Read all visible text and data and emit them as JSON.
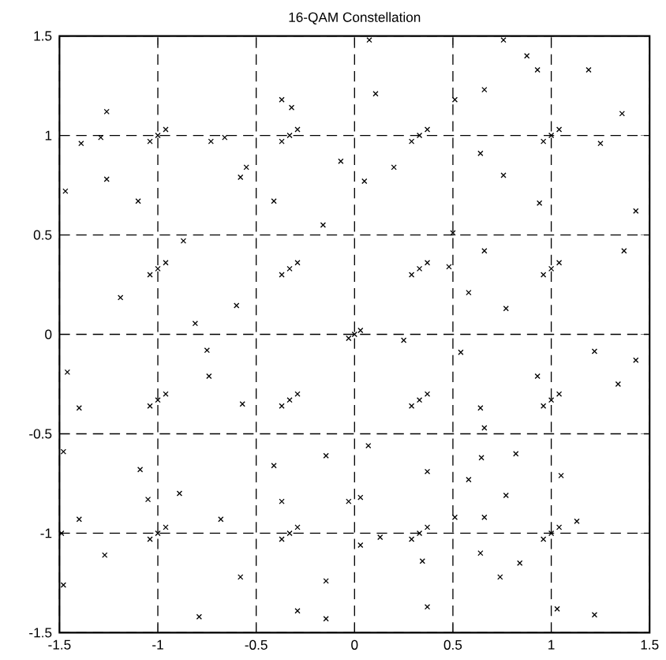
{
  "chart_data": {
    "type": "scatter",
    "title": "16-QAM Constellation",
    "x": [
      -1,
      -0.96,
      -1.04,
      -0.33,
      -0.29,
      -0.37,
      0.33,
      0.37,
      0.29,
      1,
      1.04,
      0.96,
      -1,
      -0.96,
      -1.04,
      -0.33,
      -0.29,
      -0.37,
      0.33,
      0.37,
      0.29,
      1,
      1.04,
      0.96,
      -1,
      -0.96,
      -1.04,
      -0.33,
      -0.29,
      -0.37,
      0.33,
      0.37,
      0.29,
      1,
      1.04,
      0.96,
      -1,
      -0.96,
      -1.04,
      -0.33,
      -0.29,
      -0.37,
      0.33,
      0.37,
      0.29,
      1,
      1.04,
      0.96,
      0,
      0.03,
      -0.03,
      -1.47,
      -1.26,
      -1.39,
      -1.29,
      -1.26,
      -1.1,
      -0.73,
      -0.66,
      -0.58,
      -0.55,
      -0.81,
      -0.6,
      -0.16,
      -0.41,
      -0.37,
      -0.32,
      -1.19,
      -0.87,
      0.075,
      0.757,
      0.876,
      0.93,
      1.19,
      0.107,
      0.66,
      0.51,
      1.36,
      -0.07,
      0.05,
      0.2,
      0.64,
      0.757,
      1.25,
      0.94,
      1.43,
      1.37,
      0.66,
      0.77,
      0.58,
      0.48,
      0.5,
      -1.46,
      -1.4,
      -1.48,
      -1.09,
      -0.89,
      -1.05,
      -1.4,
      -1.49,
      -1.27,
      -1.48,
      -0.79,
      -0.75,
      -0.74,
      -0.58,
      -0.29,
      -0.145,
      -0.145,
      -0.145,
      -0.68,
      -0.37,
      -0.41,
      -0.57,
      0.25,
      0.54,
      1.22,
      1.43,
      1.34,
      0.93,
      0.64,
      0.66,
      0.07,
      0.645,
      0.37,
      0.58,
      0.77,
      0.82,
      1.05,
      -0.03,
      0.03,
      0.51,
      0.66,
      0.64,
      0.74,
      0.84,
      0.345,
      0.37,
      1.22,
      1.03,
      0.13,
      0.03,
      1.13
    ],
    "values": [
      1,
      1.03,
      0.97,
      1,
      1.03,
      0.97,
      1,
      1.03,
      0.97,
      1,
      1.03,
      0.97,
      0.33,
      0.36,
      0.3,
      0.33,
      0.36,
      0.3,
      0.33,
      0.36,
      0.3,
      0.33,
      0.36,
      0.3,
      -0.33,
      -0.3,
      -0.36,
      -0.33,
      -0.3,
      -0.36,
      -0.33,
      -0.3,
      -0.36,
      -0.33,
      -0.3,
      -0.36,
      -1,
      -0.97,
      -1.03,
      -1,
      -0.97,
      -1.03,
      -1,
      -0.97,
      -1.03,
      -1,
      -0.97,
      -1.03,
      0,
      0.02,
      -0.02,
      0.72,
      1.12,
      0.96,
      0.99,
      0.78,
      0.67,
      0.97,
      0.99,
      0.79,
      0.84,
      0.055,
      0.145,
      0.55,
      0.67,
      1.18,
      1.14,
      0.185,
      0.47,
      1.48,
      1.48,
      1.4,
      1.33,
      1.33,
      1.21,
      1.23,
      1.18,
      1.11,
      0.87,
      0.77,
      0.84,
      0.91,
      0.8,
      0.96,
      0.66,
      0.62,
      0.42,
      0.42,
      0.13,
      0.21,
      0.34,
      0.51,
      -0.19,
      -0.37,
      -0.59,
      -0.68,
      -0.8,
      -0.83,
      -0.93,
      -1,
      -1.11,
      -1.26,
      -1.42,
      -0.08,
      -0.21,
      -1.22,
      -1.39,
      -0.61,
      -1.24,
      -1.43,
      -0.93,
      -0.84,
      -0.66,
      -0.35,
      -0.03,
      -0.09,
      -0.085,
      -0.13,
      -0.25,
      -0.21,
      -0.37,
      -0.47,
      -0.56,
      -0.62,
      -0.69,
      -0.73,
      -0.81,
      -0.6,
      -0.71,
      -0.84,
      -0.82,
      -0.92,
      -0.92,
      -1.1,
      -1.22,
      -1.15,
      -1.14,
      -1.37,
      -1.41,
      -1.38,
      -1.02,
      -1.06,
      -0.94
    ],
    "color": "#000000",
    "marker": "cross",
    "grid": true,
    "xlim": [
      -1.5,
      1.5
    ],
    "ylim": [
      -1.5,
      1.5
    ],
    "xticks": [
      -1.5,
      -1,
      -0.5,
      0,
      0.5,
      1,
      1.5
    ],
    "yticks": [
      -1.5,
      -1,
      -0.5,
      0,
      0.5,
      1,
      1.5
    ]
  }
}
